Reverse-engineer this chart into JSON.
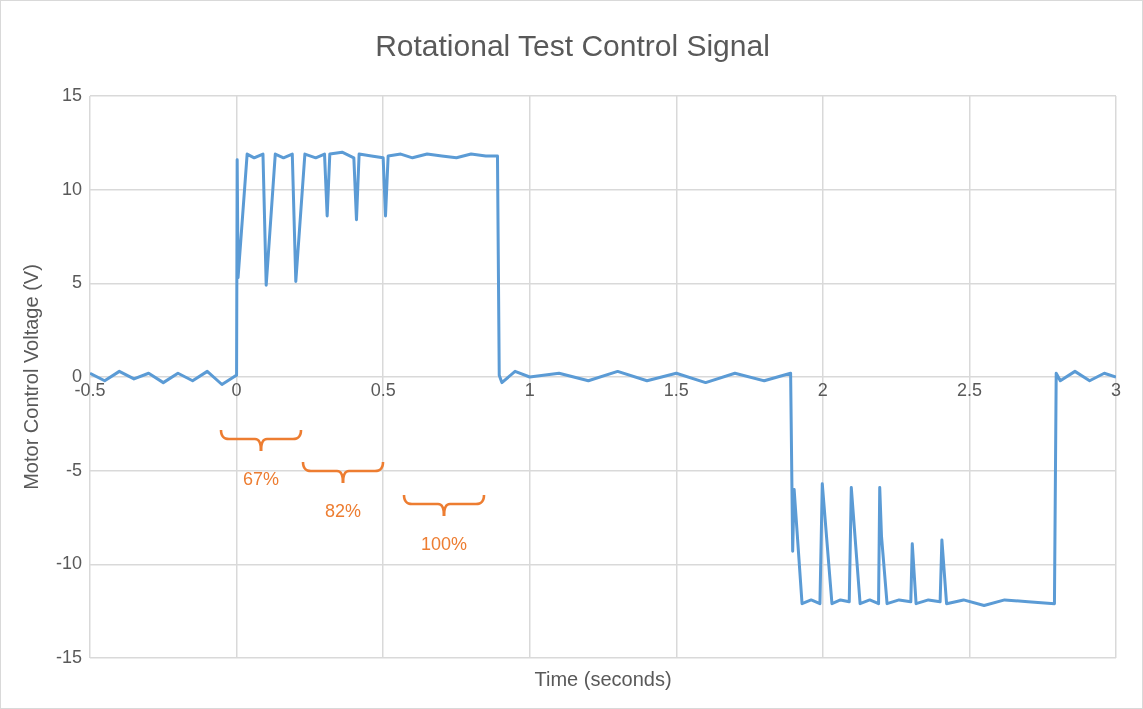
{
  "chart_data": {
    "type": "line",
    "title": "Rotational Test Control Signal",
    "xlabel": "Time (seconds)",
    "ylabel": "Motor Control Voltage (V)",
    "xlim": [
      -0.5,
      3
    ],
    "xticks": [
      -0.5,
      0,
      0.5,
      1,
      1.5,
      2,
      2.5,
      3
    ],
    "ylim": [
      -15,
      15
    ],
    "yticks": [
      -15,
      -10,
      -5,
      0,
      5,
      10,
      15
    ],
    "grid": true,
    "marker": "none",
    "line_style": "solid",
    "annotations": [
      "67%",
      "82%",
      "100%"
    ],
    "series": [
      {
        "color": "#5b9bd5",
        "x": [
          -0.5,
          -0.45,
          -0.4,
          -0.35,
          -0.3,
          -0.25,
          -0.2,
          -0.15,
          -0.1,
          -0.05,
          -0.01,
          0.0,
          0.002,
          0.005,
          0.036,
          0.06,
          0.09,
          0.101,
          0.132,
          0.16,
          0.19,
          0.202,
          0.233,
          0.27,
          0.3,
          0.309,
          0.318,
          0.36,
          0.4,
          0.409,
          0.418,
          0.46,
          0.5,
          0.508,
          0.517,
          0.56,
          0.6,
          0.65,
          0.7,
          0.75,
          0.8,
          0.85,
          0.89,
          0.896,
          0.905,
          0.95,
          1.0,
          1.1,
          1.2,
          1.3,
          1.4,
          1.5,
          1.6,
          1.7,
          1.8,
          1.89,
          1.897,
          1.902,
          1.929,
          1.96,
          1.99,
          1.998,
          2.031,
          2.06,
          2.09,
          2.097,
          2.127,
          2.16,
          2.19,
          2.194,
          2.2,
          2.219,
          2.26,
          2.3,
          2.305,
          2.318,
          2.36,
          2.4,
          2.406,
          2.422,
          2.48,
          2.55,
          2.62,
          2.7,
          2.79,
          2.796,
          2.81,
          2.86,
          2.91,
          2.96,
          3.0
        ],
        "values": [
          0.2,
          -0.2,
          0.3,
          -0.1,
          0.2,
          -0.3,
          0.2,
          -0.2,
          0.3,
          -0.4,
          0.0,
          0.1,
          11.6,
          5.3,
          11.9,
          11.7,
          11.9,
          4.9,
          11.9,
          11.7,
          11.9,
          5.1,
          11.9,
          11.7,
          11.9,
          8.6,
          11.9,
          12.0,
          11.7,
          8.4,
          11.9,
          11.8,
          11.7,
          8.6,
          11.8,
          11.9,
          11.7,
          11.9,
          11.8,
          11.7,
          11.9,
          11.8,
          11.8,
          0.1,
          -0.3,
          0.3,
          0.0,
          0.2,
          -0.2,
          0.3,
          -0.2,
          0.2,
          -0.3,
          0.2,
          -0.2,
          0.2,
          -9.3,
          -6.0,
          -12.1,
          -11.9,
          -12.1,
          -5.7,
          -12.1,
          -11.9,
          -12.0,
          -5.9,
          -12.1,
          -11.9,
          -12.1,
          -5.9,
          -8.5,
          -12.1,
          -11.9,
          -12.0,
          -8.9,
          -12.1,
          -11.9,
          -12.0,
          -8.7,
          -12.1,
          -11.9,
          -12.2,
          -11.9,
          -12.0,
          -12.1,
          0.2,
          -0.2,
          0.3,
          -0.2,
          0.2,
          0.0
        ]
      }
    ]
  }
}
